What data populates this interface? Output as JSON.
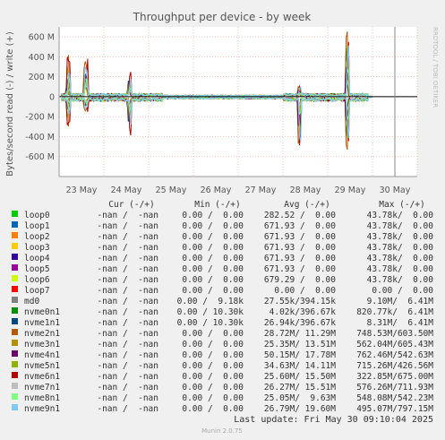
{
  "chart_data": {
    "type": "line",
    "title": "Throughput per device - by week",
    "ylabel": "Bytes/second read (-) / write (+)",
    "side_label": "RRDTOOL / TOBI OETIKER",
    "y_ticks": [
      {
        "v": 600,
        "label": "600 M"
      },
      {
        "v": 400,
        "label": "400 M"
      },
      {
        "v": 200,
        "label": "200 M"
      },
      {
        "v": 0,
        "label": "0"
      },
      {
        "v": -200,
        "label": "-200 M"
      },
      {
        "v": -400,
        "label": "-400 M"
      },
      {
        "v": -600,
        "label": "-600 M"
      }
    ],
    "ylim": [
      -800,
      700
    ],
    "x_ticks": [
      "23 May",
      "24 May",
      "25 May",
      "26 May",
      "27 May",
      "28 May",
      "29 May",
      "30 May"
    ],
    "x_tick_pos": [
      0.5,
      1.5,
      2.5,
      3.5,
      4.5,
      5.5,
      6.5,
      7.5
    ],
    "xlim": [
      0,
      8
    ],
    "now_marker": 7.5,
    "bursts": [
      {
        "x": 0.18,
        "w": 0.03,
        "up": 420,
        "down": -300
      },
      {
        "x": 0.58,
        "w": 0.04,
        "up": 450,
        "down": -180
      },
      {
        "x": 1.55,
        "w": 0.03,
        "up": 270,
        "down": -420
      },
      {
        "x": 5.35,
        "w": 0.03,
        "up": 150,
        "down": -700
      },
      {
        "x": 6.42,
        "w": 0.03,
        "up": 690,
        "down": -560
      }
    ],
    "legend_header": {
      "cur": "Cur (-/+)",
      "min": "Min (-/+)",
      "avg": "Avg (-/+)",
      "max": "Max (-/+)"
    },
    "series": [
      {
        "name": "loop0",
        "color": "#00cc00",
        "cur": "-nan /  -nan",
        "min": "0.00 /  0.00",
        "avg": "282.52 /  0.00",
        "max": "43.78k/  0.00"
      },
      {
        "name": "loop1",
        "color": "#0066b3",
        "cur": "-nan /  -nan",
        "min": "0.00 /  0.00",
        "avg": "671.93 /  0.00",
        "max": "43.78k/  0.00"
      },
      {
        "name": "loop2",
        "color": "#ff8000",
        "cur": "-nan /  -nan",
        "min": "0.00 /  0.00",
        "avg": "671.93 /  0.00",
        "max": "43.78k/  0.00"
      },
      {
        "name": "loop3",
        "color": "#ffcc00",
        "cur": "-nan /  -nan",
        "min": "0.00 /  0.00",
        "avg": "671.93 /  0.00",
        "max": "43.78k/  0.00"
      },
      {
        "name": "loop4",
        "color": "#330099",
        "cur": "-nan /  -nan",
        "min": "0.00 /  0.00",
        "avg": "671.93 /  0.00",
        "max": "43.78k/  0.00"
      },
      {
        "name": "loop5",
        "color": "#990099",
        "cur": "-nan /  -nan",
        "min": "0.00 /  0.00",
        "avg": "671.93 /  0.00",
        "max": "43.78k/  0.00"
      },
      {
        "name": "loop6",
        "color": "#ccff00",
        "cur": "-nan /  -nan",
        "min": "0.00 /  0.00",
        "avg": "679.29 /  0.00",
        "max": "43.78k/  0.00"
      },
      {
        "name": "loop7",
        "color": "#ff0000",
        "cur": "-nan /  -nan",
        "min": "0.00 /  0.00",
        "avg": "0.00 /  0.00",
        "max": "0.00 /  0.00"
      },
      {
        "name": "md0",
        "color": "#808080",
        "cur": "-nan /  -nan",
        "min": "0.00 /  9.18k",
        "avg": "27.55k/394.15k",
        "max": "9.10M/  6.41M"
      },
      {
        "name": "nvme0n1",
        "color": "#008f00",
        "cur": "-nan /  -nan",
        "min": "0.00 / 10.30k",
        "avg": "4.02k/396.67k",
        "max": "820.77k/  6.41M"
      },
      {
        "name": "nvme1n1",
        "color": "#00487d",
        "cur": "-nan /  -nan",
        "min": "0.00 / 10.30k",
        "avg": "26.94k/396.67k",
        "max": "8.31M/  6.41M"
      },
      {
        "name": "nvme2n1",
        "color": "#b35a00",
        "cur": "-nan /  -nan",
        "min": "0.00 /  0.00",
        "avg": "28.72M/ 11.29M",
        "max": "748.53M/603.50M"
      },
      {
        "name": "nvme3n1",
        "color": "#b38f00",
        "cur": "-nan /  -nan",
        "min": "0.00 /  0.00",
        "avg": "25.35M/ 13.51M",
        "max": "562.04M/605.43M"
      },
      {
        "name": "nvme4n1",
        "color": "#6b006b",
        "cur": "-nan /  -nan",
        "min": "0.00 /  0.00",
        "avg": "50.15M/ 17.78M",
        "max": "762.46M/542.63M"
      },
      {
        "name": "nvme5n1",
        "color": "#8fb300",
        "cur": "-nan /  -nan",
        "min": "0.00 /  0.00",
        "avg": "34.63M/ 14.11M",
        "max": "715.26M/426.56M"
      },
      {
        "name": "nvme6n1",
        "color": "#b30000",
        "cur": "-nan /  -nan",
        "min": "0.00 /  0.00",
        "avg": "25.60M/ 15.50M",
        "max": "322.85M/675.00M"
      },
      {
        "name": "nvme7n1",
        "color": "#bebebe",
        "cur": "-nan /  -nan",
        "min": "0.00 /  0.00",
        "avg": "26.27M/ 15.51M",
        "max": "576.26M/711.93M"
      },
      {
        "name": "nvme8n1",
        "color": "#80ff80",
        "cur": "-nan /  -nan",
        "min": "0.00 /  0.00",
        "avg": "25.05M/  9.63M",
        "max": "548.08M/542.23M"
      },
      {
        "name": "nvme9n1",
        "color": "#80c9ff",
        "cur": "-nan /  -nan",
        "min": "0.00 /  0.00",
        "avg": "26.79M/ 19.60M",
        "max": "495.07M/797.15M"
      }
    ],
    "last_update": "Last update: Fri May 30 09:10:04 2025",
    "footer": "Munin 2.0.75"
  }
}
